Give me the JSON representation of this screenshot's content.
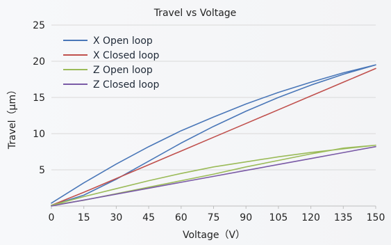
{
  "chart_data": {
    "type": "line",
    "title": "Travel vs Voltage",
    "xlabel": "Voltage（V）",
    "ylabel": "Travel（μm）",
    "xlim": [
      0,
      150
    ],
    "ylim": [
      0,
      25
    ],
    "xticks": [
      0,
      15,
      30,
      45,
      60,
      75,
      90,
      105,
      120,
      135,
      150
    ],
    "yticks": [
      5,
      10,
      15,
      20,
      25
    ],
    "grid": true,
    "legend_position": "top-left",
    "series": [
      {
        "name": "X Open loop",
        "color": "#4a77b8",
        "x": [
          0,
          15,
          30,
          45,
          60,
          75,
          90,
          105,
          120,
          135,
          150,
          135,
          120,
          105,
          90,
          75,
          60,
          45,
          30,
          15,
          0
        ],
        "y": [
          0.4,
          3.2,
          5.8,
          8.2,
          10.4,
          12.3,
          14.1,
          15.7,
          17.1,
          18.4,
          19.5,
          18.2,
          16.7,
          15.0,
          13.1,
          11.0,
          8.7,
          6.2,
          3.7,
          1.5,
          0.1
        ]
      },
      {
        "name": "X Closed loop",
        "color": "#c0504d",
        "x": [
          0,
          15,
          30,
          45,
          60,
          75,
          90,
          105,
          120,
          135,
          150
        ],
        "y": [
          0.1,
          1.9,
          3.8,
          5.7,
          7.6,
          9.5,
          11.4,
          13.3,
          15.2,
          17.1,
          19.0
        ]
      },
      {
        "name": "Z Open loop",
        "color": "#9bbb59",
        "x": [
          0,
          15,
          30,
          45,
          60,
          75,
          90,
          105,
          120,
          135,
          150,
          135,
          120,
          105,
          90,
          75,
          60,
          45,
          30,
          15,
          0
        ],
        "y": [
          0.1,
          1.3,
          2.4,
          3.5,
          4.5,
          5.4,
          6.1,
          6.8,
          7.4,
          7.9,
          8.4,
          8.0,
          7.2,
          6.3,
          5.4,
          4.4,
          3.5,
          2.6,
          1.7,
          0.8,
          0.1
        ]
      },
      {
        "name": "Z Closed loop",
        "color": "#7a5aa6",
        "x": [
          0,
          15,
          30,
          45,
          60,
          75,
          90,
          105,
          120,
          135,
          150
        ],
        "y": [
          0.0,
          0.82,
          1.64,
          2.46,
          3.28,
          4.1,
          4.92,
          5.74,
          6.56,
          7.38,
          8.2
        ]
      }
    ]
  }
}
